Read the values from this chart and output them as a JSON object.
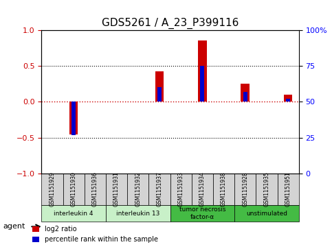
{
  "title": "GDS5261 / A_23_P399116",
  "samples": [
    "GSM1151929",
    "GSM1151930",
    "GSM1151936",
    "GSM1151931",
    "GSM1151932",
    "GSM1151937",
    "GSM1151933",
    "GSM1151934",
    "GSM1151938",
    "GSM1151928",
    "GSM1151935",
    "GSM1151951"
  ],
  "log2_ratio": [
    0.0,
    -0.45,
    0.0,
    0.0,
    0.0,
    0.42,
    0.0,
    0.85,
    0.0,
    0.25,
    0.0,
    0.1
  ],
  "percentile_rank": [
    50,
    27,
    50,
    50,
    50,
    60,
    50,
    75,
    50,
    57,
    50,
    52
  ],
  "groups": [
    {
      "label": "interleukin 4",
      "start": 0,
      "end": 3,
      "color": "#c8f0c8"
    },
    {
      "label": "interleukin 13",
      "start": 3,
      "end": 6,
      "color": "#c8f0c8"
    },
    {
      "label": "tumor necrosis\nfactor-α",
      "start": 6,
      "end": 9,
      "color": "#44bb44"
    },
    {
      "label": "unstimulated",
      "start": 9,
      "end": 12,
      "color": "#44bb44"
    }
  ],
  "ylim_left": [
    -1,
    1
  ],
  "ylim_right": [
    0,
    100
  ],
  "yticks_left": [
    -1,
    -0.5,
    0,
    0.5,
    1
  ],
  "yticks_right": [
    0,
    25,
    50,
    75,
    100
  ],
  "ytick_labels_right": [
    "0",
    "25",
    "50",
    "75",
    "100%"
  ],
  "hline_y": [
    0.5,
    0,
    -0.5
  ],
  "bar_width": 0.4,
  "red_color": "#cc0000",
  "blue_color": "#0000cc",
  "legend_red": "log2 ratio",
  "legend_blue": "percentile rank within the sample",
  "agent_label": "agent",
  "bg_sample_color": "#d3d3d3",
  "title_fontsize": 11
}
